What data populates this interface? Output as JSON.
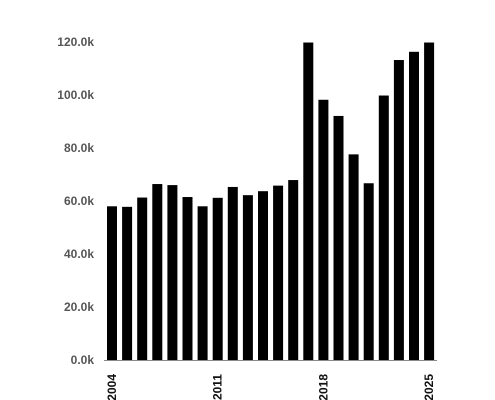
{
  "chart_data": {
    "type": "bar",
    "title": "",
    "xlabel": "",
    "ylabel": "",
    "categories": [
      "2004",
      "2005",
      "2006",
      "2007",
      "2008",
      "2009",
      "2010",
      "2011",
      "2012",
      "2013",
      "2014",
      "2015",
      "2016",
      "2017",
      "2018",
      "2019",
      "2020",
      "2021",
      "2022",
      "2023",
      "2024",
      "2025"
    ],
    "values": [
      58000,
      57800,
      61300,
      66400,
      66000,
      61500,
      58000,
      61200,
      65300,
      62200,
      63700,
      65800,
      67900,
      119800,
      98200,
      92100,
      77600,
      66700,
      99800,
      113200,
      116300,
      119800
    ],
    "ylim": [
      0,
      120000
    ],
    "yticks": [
      0,
      20000,
      40000,
      60000,
      80000,
      100000,
      120000
    ],
    "ytick_labels": [
      "0.0k",
      "20.0k",
      "40.0k",
      "60.0k",
      "80.0k",
      "100.0k",
      "120.0k"
    ],
    "xtick_labels": [
      "2004",
      "2011",
      "2018",
      "2025"
    ],
    "xtick_indices": [
      0,
      7,
      14,
      21
    ],
    "bar_color": "#000000",
    "grid": false,
    "legend": "none"
  }
}
